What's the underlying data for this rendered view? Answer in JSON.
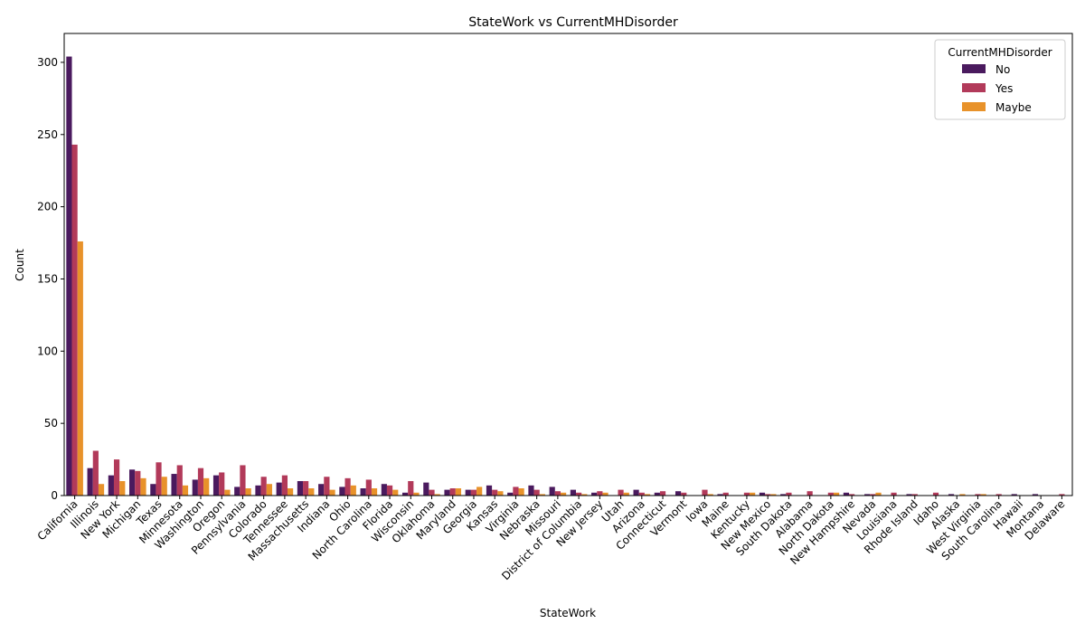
{
  "chart_data": {
    "type": "bar",
    "title": "StateWork vs CurrentMHDisorder",
    "xlabel": "StateWork",
    "ylabel": "Count",
    "ylim": [
      0,
      320
    ],
    "yticks": [
      0,
      50,
      100,
      150,
      200,
      250,
      300
    ],
    "legend": {
      "title": "CurrentMHDisorder",
      "placement": "top-right"
    },
    "categories": [
      "California",
      "Illinois",
      "New York",
      "Michigan",
      "Texas",
      "Minnesota",
      "Washington",
      "Oregon",
      "Pennsylvania",
      "Colorado",
      "Tennessee",
      "Massachusetts",
      "Indiana",
      "Ohio",
      "North Carolina",
      "Florida",
      "Wisconsin",
      "Oklahoma",
      "Maryland",
      "Georgia",
      "Kansas",
      "Virginia",
      "Nebraska",
      "Missouri",
      "District of Columbia",
      "New Jersey",
      "Utah",
      "Arizona",
      "Connecticut",
      "Vermont",
      "Iowa",
      "Maine",
      "Kentucky",
      "New Mexico",
      "South Dakota",
      "Alabama",
      "North Dakota",
      "New Hampshire",
      "Nevada",
      "Louisiana",
      "Rhode Island",
      "Idaho",
      "Alaska",
      "West Virginia",
      "South Carolina",
      "Hawaii",
      "Montana",
      "Delaware"
    ],
    "series": [
      {
        "name": "No",
        "color": "#4a1a5e",
        "values": [
          304,
          19,
          14,
          18,
          8,
          15,
          11,
          14,
          6,
          7,
          9,
          10,
          8,
          6,
          5,
          8,
          2,
          9,
          4,
          4,
          7,
          2,
          7,
          6,
          4,
          2,
          0,
          4,
          2,
          3,
          0,
          1,
          0,
          2,
          1,
          0,
          0,
          2,
          1,
          0,
          1,
          0,
          1,
          0,
          0,
          1,
          1,
          0
        ]
      },
      {
        "name": "Yes",
        "color": "#b23a5a",
        "values": [
          243,
          31,
          25,
          17,
          23,
          21,
          19,
          16,
          21,
          13,
          14,
          10,
          13,
          12,
          11,
          7,
          10,
          4,
          5,
          4,
          4,
          6,
          4,
          3,
          2,
          3,
          4,
          2,
          3,
          2,
          4,
          2,
          2,
          1,
          2,
          3,
          2,
          1,
          1,
          2,
          1,
          2,
          0,
          1,
          1,
          0,
          0,
          1
        ]
      },
      {
        "name": "Maybe",
        "color": "#e8922a",
        "values": [
          176,
          8,
          10,
          12,
          13,
          7,
          12,
          4,
          5,
          8,
          5,
          5,
          4,
          7,
          5,
          4,
          2,
          1,
          5,
          6,
          3,
          5,
          1,
          2,
          1,
          2,
          2,
          1,
          0,
          0,
          1,
          0,
          2,
          1,
          0,
          0,
          2,
          0,
          2,
          0,
          0,
          0,
          1,
          1,
          0,
          0,
          0,
          0
        ]
      }
    ]
  }
}
